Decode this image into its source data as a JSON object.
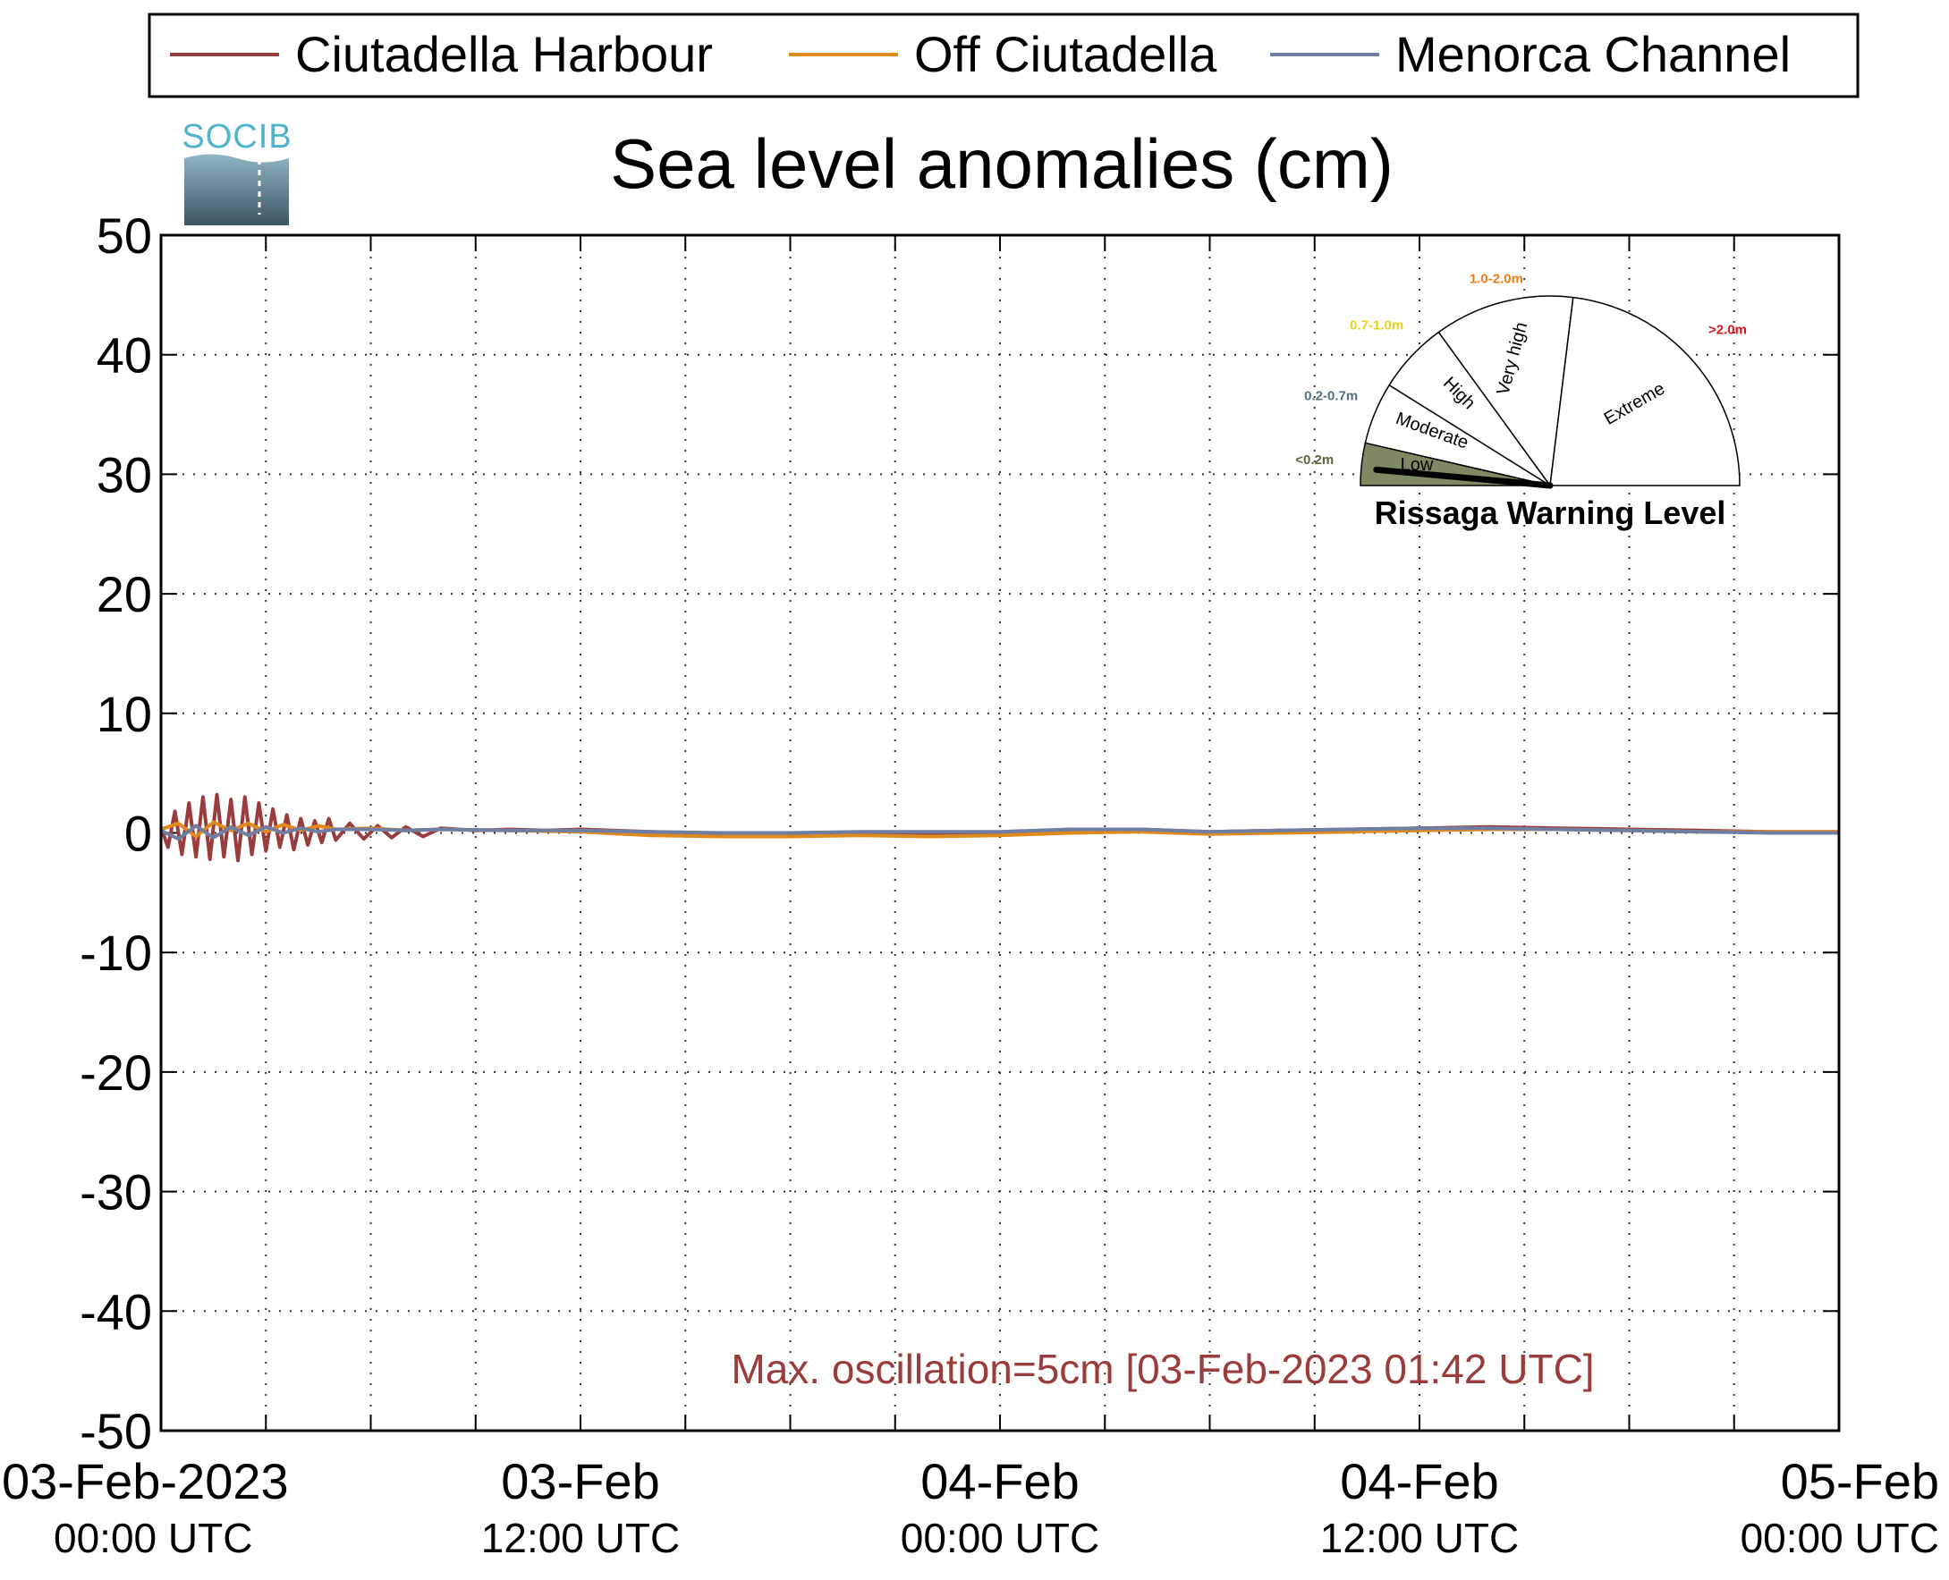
{
  "logo": {
    "text": "SOCIB"
  },
  "legend_title": "Rissaga Warning Level",
  "chart_data": {
    "type": "line",
    "title": "Sea level anomalies (cm)",
    "xlabel": "",
    "ylabel": "",
    "ylim": [
      -50,
      50
    ],
    "yticks": [
      -50,
      -40,
      -30,
      -20,
      -10,
      0,
      10,
      20,
      30,
      40,
      50
    ],
    "xlim_hours": [
      0,
      48
    ],
    "xticks": [
      {
        "hour": 0,
        "date": "03-Feb-2023",
        "time": "00:00 UTC"
      },
      {
        "hour": 12,
        "date": "03-Feb",
        "time": "12:00 UTC"
      },
      {
        "hour": 24,
        "date": "04-Feb",
        "time": "00:00 UTC"
      },
      {
        "hour": 36,
        "date": "04-Feb",
        "time": "12:00 UTC"
      },
      {
        "hour": 48,
        "date": "05-Feb",
        "time": "00:00 UTC"
      }
    ],
    "minor_xticks_hours": [
      3,
      6,
      9,
      15,
      18,
      21,
      27,
      30,
      33,
      39,
      42,
      45
    ],
    "grid": true,
    "legend_position": "top",
    "series": [
      {
        "name": "Ciutadella Harbour",
        "color": "#9b3c3c",
        "x_hours": [
          0,
          0.2,
          0.4,
          0.6,
          0.8,
          1.0,
          1.2,
          1.4,
          1.6,
          1.8,
          2.0,
          2.2,
          2.4,
          2.6,
          2.8,
          3.0,
          3.2,
          3.4,
          3.6,
          3.8,
          4.0,
          4.2,
          4.4,
          4.6,
          4.8,
          5.0,
          5.4,
          5.8,
          6.2,
          6.6,
          7.0,
          7.5,
          8.0,
          9,
          10,
          11,
          12,
          14,
          16,
          18,
          20,
          22,
          24,
          26,
          28,
          30,
          32,
          34,
          36,
          38,
          40,
          42,
          44,
          46,
          48
        ],
        "values": [
          0.5,
          -1.2,
          1.8,
          -1.8,
          2.5,
          -2.0,
          3.0,
          -2.2,
          3.2,
          -2.0,
          2.8,
          -2.3,
          3.0,
          -1.8,
          2.5,
          -1.5,
          2.0,
          -1.2,
          1.5,
          -1.4,
          1.2,
          -1.0,
          1.0,
          -0.8,
          1.2,
          -0.6,
          0.8,
          -0.5,
          0.6,
          -0.4,
          0.5,
          -0.3,
          0.4,
          0.2,
          0.3,
          0.2,
          0.3,
          0.1,
          -0.1,
          -0.2,
          -0.1,
          -0.1,
          0.0,
          0.2,
          0.3,
          0.1,
          0.2,
          0.3,
          0.4,
          0.5,
          0.4,
          0.3,
          0.2,
          0.1,
          0.1
        ]
      },
      {
        "name": "Off Ciutadella",
        "color": "#e08a1e",
        "x_hours": [
          0,
          0.5,
          1.0,
          1.5,
          2.0,
          2.5,
          3.0,
          3.5,
          4.0,
          4.5,
          5.0,
          6,
          7,
          8,
          10,
          12,
          14,
          16,
          18,
          20,
          22,
          24,
          26,
          28,
          30,
          32,
          34,
          36,
          38,
          40,
          42,
          44,
          46,
          48
        ],
        "values": [
          0.3,
          0.8,
          -0.3,
          0.9,
          0.2,
          0.8,
          0.1,
          0.7,
          0.2,
          0.6,
          0.3,
          0.4,
          0.2,
          0.3,
          0.2,
          0.1,
          -0.2,
          -0.3,
          -0.3,
          -0.2,
          -0.3,
          -0.2,
          0.0,
          0.1,
          -0.1,
          0.0,
          0.1,
          0.2,
          0.3,
          0.3,
          0.2,
          0.1,
          0.1,
          0.1
        ]
      },
      {
        "name": "Menorca Channel",
        "color": "#6e7fa3",
        "x_hours": [
          0,
          0.5,
          1.0,
          1.5,
          2.0,
          2.5,
          3.0,
          3.5,
          4.0,
          4.5,
          5.0,
          6,
          7,
          8,
          10,
          12,
          14,
          16,
          18,
          20,
          22,
          24,
          26,
          28,
          30,
          32,
          34,
          36,
          38,
          40,
          42,
          44,
          46,
          48
        ],
        "values": [
          0.2,
          -0.5,
          0.6,
          -0.4,
          0.5,
          -0.2,
          0.5,
          0.0,
          0.4,
          0.1,
          0.3,
          0.3,
          0.2,
          0.3,
          0.2,
          0.2,
          0.1,
          0.0,
          0.0,
          0.1,
          0.1,
          0.1,
          0.3,
          0.3,
          0.1,
          0.2,
          0.3,
          0.4,
          0.4,
          0.3,
          0.2,
          0.1,
          0.0,
          0.0
        ]
      }
    ],
    "annotation": {
      "text": "Max. oscillation=5cm [03-Feb-2023 01:42 UTC]",
      "color": "#9b3c3c"
    }
  },
  "gauge": {
    "needle_value": 0.05,
    "levels": [
      {
        "name": "Low",
        "range": "<0.2m",
        "range_color": "#5a6b3a",
        "fill": "#7d8a63",
        "active": true
      },
      {
        "name": "Moderate",
        "range": "0.2-0.7m",
        "range_color": "#55707a",
        "fill": "#ffffff",
        "active": false
      },
      {
        "name": "High",
        "range": "0.7-1.0m",
        "range_color": "#e6d21c",
        "fill": "#ffffff",
        "active": false
      },
      {
        "name": "Very high",
        "range": "1.0-2.0m",
        "range_color": "#f07c14",
        "fill": "#ffffff",
        "active": false
      },
      {
        "name": "Extreme",
        "range": ">2.0m",
        "range_color": "#e0101a",
        "fill": "#ffffff",
        "active": false
      }
    ]
  }
}
